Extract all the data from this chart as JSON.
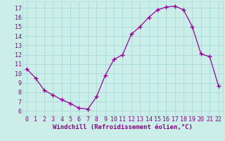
{
  "x": [
    0,
    1,
    2,
    3,
    4,
    5,
    6,
    7,
    8,
    9,
    10,
    11,
    12,
    13,
    14,
    15,
    16,
    17,
    18,
    19,
    20,
    21,
    22
  ],
  "y": [
    10.5,
    9.5,
    8.2,
    7.7,
    7.2,
    6.8,
    6.3,
    6.2,
    7.5,
    9.8,
    11.5,
    12.0,
    14.2,
    15.0,
    16.0,
    16.8,
    17.1,
    17.2,
    16.8,
    15.0,
    12.1,
    11.8,
    8.7
  ],
  "line_color": "#990099",
  "marker": "+",
  "marker_size": 4,
  "xlabel": "Windchill (Refroidissement éolien,°C)",
  "xlim": [
    -0.5,
    22.5
  ],
  "ylim": [
    5.5,
    17.7
  ],
  "yticks": [
    6,
    7,
    8,
    9,
    10,
    11,
    12,
    13,
    14,
    15,
    16,
    17
  ],
  "xticks": [
    0,
    1,
    2,
    3,
    4,
    5,
    6,
    7,
    8,
    9,
    10,
    11,
    12,
    13,
    14,
    15,
    16,
    17,
    18,
    19,
    20,
    21,
    22
  ],
  "background_color": "#cceee8",
  "grid_color": "#aadddd",
  "tick_label_color": "#880088",
  "axis_label_color": "#880088",
  "label_fontsize": 6.5,
  "tick_fontsize": 6.0
}
